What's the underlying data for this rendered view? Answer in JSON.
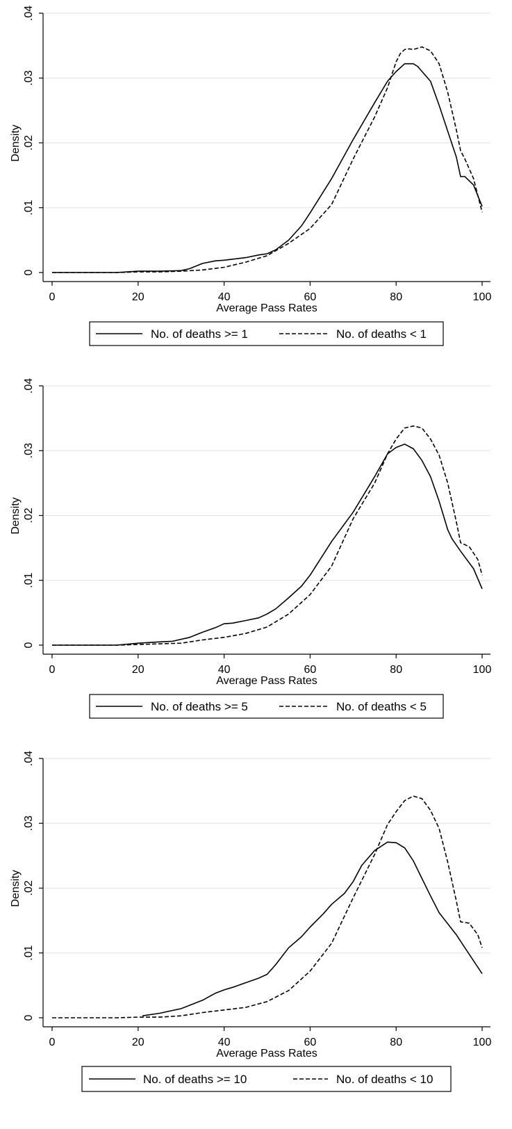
{
  "chart_data": [
    {
      "type": "line",
      "ylabel": "Density",
      "xlabel": "Average Pass Rates",
      "xlim": [
        0,
        100
      ],
      "ylim": [
        0,
        0.04
      ],
      "xticks": [
        "0",
        "20",
        "40",
        "60",
        "80",
        "100"
      ],
      "yticks": [
        "0",
        ".01",
        ".02",
        ".03",
        ".04"
      ],
      "grid": true,
      "legend_position": "bottom",
      "series": [
        {
          "name": "No. of deaths >= 1",
          "style": "solid",
          "x": [
            0,
            15,
            20,
            25,
            30,
            32,
            35,
            38,
            40,
            45,
            48,
            50,
            52,
            55,
            58,
            60,
            65,
            70,
            75,
            78,
            80,
            82,
            84,
            85,
            88,
            90,
            92,
            94,
            95,
            96,
            98,
            100
          ],
          "y": [
            0,
            0,
            0.0002,
            0.0002,
            0.0003,
            0.0006,
            0.0014,
            0.0018,
            0.0019,
            0.0023,
            0.0027,
            0.0029,
            0.0035,
            0.005,
            0.0072,
            0.0092,
            0.0145,
            0.0205,
            0.0262,
            0.0295,
            0.031,
            0.0322,
            0.0322,
            0.0318,
            0.0295,
            0.0258,
            0.0218,
            0.0178,
            0.0148,
            0.0148,
            0.0135,
            0.0102
          ]
        },
        {
          "name": "No. of deaths < 1",
          "style": "dashed",
          "x": [
            0,
            15,
            20,
            25,
            30,
            35,
            40,
            45,
            50,
            55,
            60,
            65,
            70,
            75,
            78,
            80,
            81,
            82,
            83,
            84,
            85,
            86,
            88,
            90,
            92,
            94,
            95,
            96,
            98,
            100
          ],
          "y": [
            0,
            0,
            0.0001,
            0.0001,
            0.0002,
            0.0004,
            0.0008,
            0.0016,
            0.0026,
            0.0045,
            0.0068,
            0.0105,
            0.0175,
            0.024,
            0.0285,
            0.0325,
            0.0338,
            0.0344,
            0.0345,
            0.0344,
            0.0346,
            0.0348,
            0.0342,
            0.0322,
            0.0278,
            0.022,
            0.0188,
            0.0175,
            0.0145,
            0.0093
          ]
        }
      ]
    },
    {
      "type": "line",
      "ylabel": "Density",
      "xlabel": "Average Pass Rates",
      "xlim": [
        0,
        100
      ],
      "ylim": [
        0,
        0.04
      ],
      "xticks": [
        "0",
        "20",
        "40",
        "60",
        "80",
        "100"
      ],
      "yticks": [
        "0",
        ".01",
        ".02",
        ".03",
        ".04"
      ],
      "grid": true,
      "legend_position": "bottom",
      "series": [
        {
          "name": "No. of deaths >= 5",
          "style": "solid",
          "x": [
            0,
            15,
            20,
            25,
            28,
            32,
            35,
            38,
            40,
            42,
            45,
            48,
            50,
            52,
            55,
            58,
            60,
            65,
            70,
            75,
            78,
            80,
            82,
            84,
            86,
            88,
            90,
            92,
            93,
            95,
            98,
            100
          ],
          "y": [
            0,
            0,
            0.0003,
            0.0005,
            0.0006,
            0.0012,
            0.002,
            0.0027,
            0.0033,
            0.0034,
            0.0038,
            0.0042,
            0.0048,
            0.0056,
            0.0073,
            0.0091,
            0.0108,
            0.016,
            0.0205,
            0.026,
            0.0295,
            0.0305,
            0.031,
            0.0303,
            0.0285,
            0.026,
            0.0222,
            0.0178,
            0.0164,
            0.0145,
            0.0118,
            0.0087
          ]
        },
        {
          "name": "No. of deaths < 5",
          "style": "dashed",
          "x": [
            0,
            15,
            20,
            25,
            30,
            35,
            40,
            45,
            50,
            55,
            60,
            65,
            70,
            75,
            78,
            80,
            82,
            84,
            86,
            88,
            90,
            92,
            94,
            95,
            97,
            99,
            100
          ],
          "y": [
            0,
            0,
            0.0001,
            0.0002,
            0.0003,
            0.0008,
            0.0012,
            0.0018,
            0.0028,
            0.0048,
            0.0078,
            0.0122,
            0.0195,
            0.025,
            0.0295,
            0.0318,
            0.0335,
            0.0338,
            0.0335,
            0.0318,
            0.0293,
            0.025,
            0.019,
            0.0158,
            0.0152,
            0.0132,
            0.0108
          ]
        }
      ]
    },
    {
      "type": "line",
      "ylabel": "Density",
      "xlabel": "Average Pass Rates",
      "xlim": [
        0,
        100
      ],
      "ylim": [
        0,
        0.04
      ],
      "xticks": [
        "0",
        "20",
        "40",
        "60",
        "80",
        "100"
      ],
      "yticks": [
        "0",
        ".01",
        ".02",
        ".03",
        ".04"
      ],
      "grid": true,
      "legend_position": "bottom",
      "series": [
        {
          "name": "No. of deaths >= 10",
          "style": "solid",
          "x": [
            21,
            25,
            30,
            35,
            38,
            40,
            42,
            45,
            48,
            50,
            52,
            55,
            58,
            60,
            63,
            65,
            68,
            70,
            72,
            75,
            78,
            80,
            82,
            84,
            86,
            88,
            90,
            92,
            94,
            96,
            98,
            100
          ],
          "y": [
            0.0003,
            0.0007,
            0.0014,
            0.0027,
            0.0038,
            0.0043,
            0.0047,
            0.0054,
            0.0061,
            0.0067,
            0.0082,
            0.0108,
            0.0125,
            0.014,
            0.016,
            0.0175,
            0.0192,
            0.021,
            0.0235,
            0.0258,
            0.0271,
            0.027,
            0.0262,
            0.0242,
            0.0215,
            0.0188,
            0.0162,
            0.0145,
            0.0128,
            0.0108,
            0.0088,
            0.0068
          ]
        },
        {
          "name": "No. of deaths < 10",
          "style": "dashed",
          "x": [
            0,
            15,
            20,
            25,
            30,
            35,
            40,
            45,
            50,
            55,
            60,
            65,
            70,
            75,
            78,
            80,
            82,
            84,
            86,
            88,
            90,
            92,
            94,
            95,
            97,
            99,
            100
          ],
          "y": [
            0,
            0,
            0.0001,
            0.0001,
            0.0003,
            0.0008,
            0.0012,
            0.0016,
            0.0025,
            0.0042,
            0.0072,
            0.0115,
            0.0185,
            0.0252,
            0.0298,
            0.0318,
            0.0335,
            0.0342,
            0.0338,
            0.032,
            0.0292,
            0.024,
            0.018,
            0.0148,
            0.0146,
            0.0128,
            0.0108
          ]
        }
      ]
    }
  ]
}
